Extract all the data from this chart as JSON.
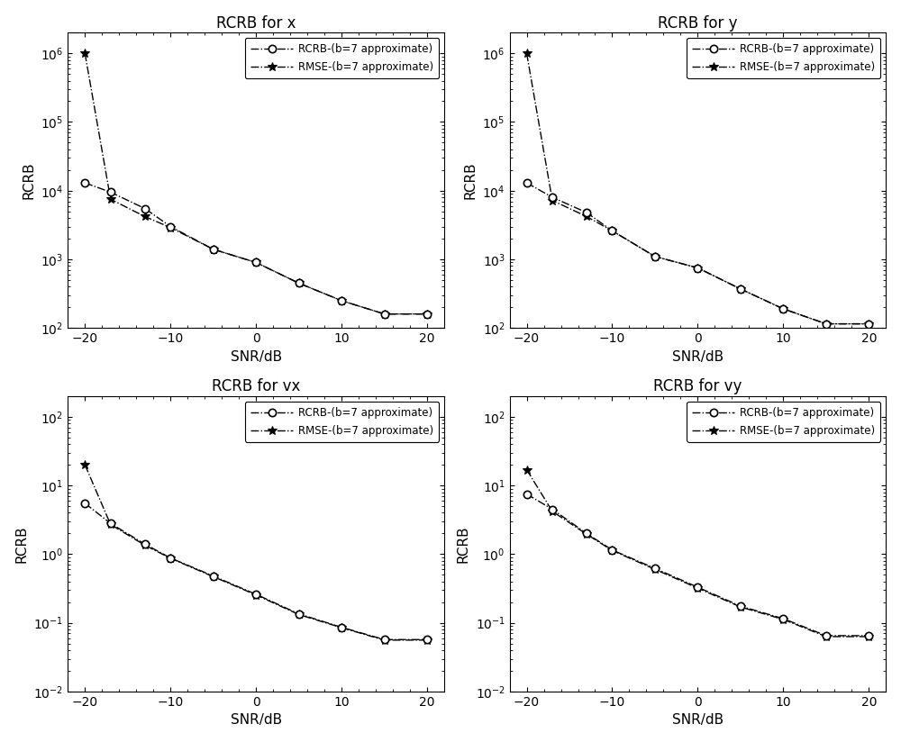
{
  "snr": [
    -20,
    -17,
    -13,
    -10,
    -5,
    0,
    5,
    10,
    15,
    20
  ],
  "plots": [
    {
      "title": "RCRB for x",
      "rcrb": [
        13000.0,
        9500,
        5500,
        3000,
        1400,
        900,
        450,
        250,
        160,
        160
      ],
      "rmse": [
        1000000.0,
        7500,
        4200,
        2900,
        1400,
        900,
        450,
        250,
        160,
        160
      ],
      "ylim": [
        100.0,
        2000000.0
      ],
      "yticks": [
        100.0,
        1000.0,
        10000.0,
        100000.0,
        1000000.0
      ]
    },
    {
      "title": "RCRB for y",
      "rcrb": [
        13000.0,
        8000,
        4800,
        2600,
        1100,
        750,
        370,
        190,
        115,
        115
      ],
      "rmse": [
        1000000.0,
        7200,
        4200,
        2600,
        1100,
        750,
        370,
        190,
        115,
        115
      ],
      "ylim": [
        100.0,
        2000000.0
      ],
      "yticks": [
        100.0,
        1000.0,
        10000.0,
        100000.0,
        1000000.0
      ]
    },
    {
      "title": "RCRB for vx",
      "rcrb": [
        5.5,
        2.8,
        1.4,
        0.88,
        0.48,
        0.26,
        0.135,
        0.086,
        0.057,
        0.057
      ],
      "rmse": [
        20,
        2.7,
        1.35,
        0.87,
        0.47,
        0.255,
        0.132,
        0.085,
        0.056,
        0.056
      ],
      "ylim": [
        0.01,
        200.0
      ],
      "yticks": [
        0.01,
        0.1,
        1.0,
        10.0,
        100.0
      ]
    },
    {
      "title": "RCRB for vy",
      "rcrb": [
        7.5,
        4.5,
        2.0,
        1.15,
        0.62,
        0.33,
        0.175,
        0.115,
        0.065,
        0.065
      ],
      "rmse": [
        17,
        4.2,
        1.95,
        1.13,
        0.6,
        0.32,
        0.17,
        0.112,
        0.063,
        0.063
      ],
      "ylim": [
        0.01,
        200.0
      ],
      "yticks": [
        0.01,
        0.1,
        1.0,
        10.0,
        100.0
      ]
    }
  ],
  "snr_ticks": [
    -20,
    -10,
    0,
    10,
    20
  ],
  "xlabel": "SNR/dB",
  "ylabel": "RCRB",
  "legend_rcrb": "RCRB-(b=7 approximate)",
  "legend_rmse": "RMSE-(b=7 approximate)",
  "line_color": "#000000",
  "fig_width": 10.0,
  "fig_height": 8.24
}
